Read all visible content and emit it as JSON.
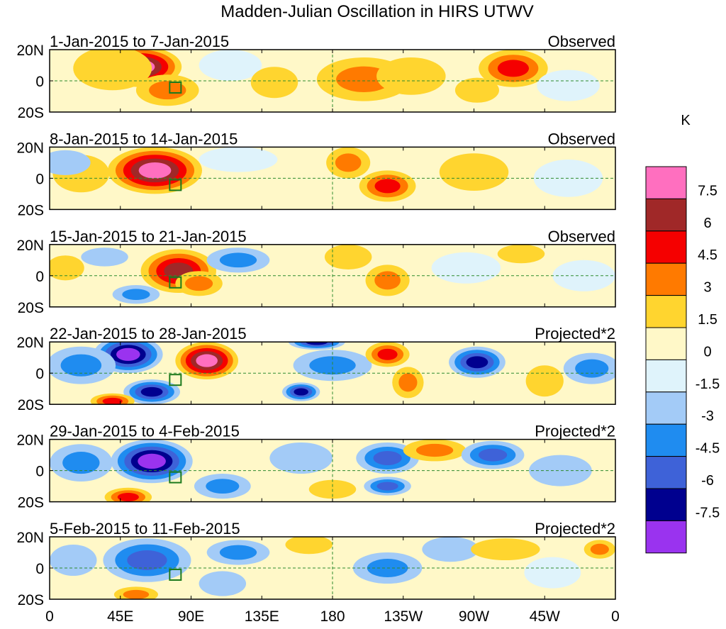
{
  "chart_data": {
    "type": "heatmap",
    "title": "Madden-Julian Oscillation in HIRS UTWV",
    "units": "K",
    "x_ticks": [
      "0",
      "45E",
      "90E",
      "135E",
      "180",
      "135W",
      "90W",
      "45W",
      "0"
    ],
    "y_ticks": [
      "20N",
      "0",
      "20S"
    ],
    "lat_range": [
      -20,
      20
    ],
    "lon_range": [
      0,
      360
    ],
    "colorbar": {
      "levels": [
        -7.5,
        -6,
        -4.5,
        -3,
        -1.5,
        0,
        1.5,
        3,
        4.5,
        6,
        7.5
      ],
      "labels": [
        "7.5",
        "6",
        "4.5",
        "3",
        "1.5",
        "0",
        "-1.5",
        "-3",
        "-4.5",
        "-6",
        "-7.5"
      ],
      "colors": [
        "#9a33ef",
        "#00008f",
        "#3e62d8",
        "#1f8cf0",
        "#a3cbf7",
        "#dff3fb",
        "#fff8c8",
        "#ffd52f",
        "#ff7a00",
        "#f50000",
        "#a02828",
        "#ff6fbf"
      ]
    },
    "panels": [
      {
        "period": "1-Jan-2015 to 7-Jan-2015",
        "kind": "Observed",
        "anomalies": [
          {
            "lon": 58,
            "lat": 9,
            "value": 7.5,
            "rx": 26,
            "ry": 13
          },
          {
            "lon": 75,
            "lat": -6,
            "value": 3.5,
            "rx": 20,
            "ry": 10
          },
          {
            "lon": 40,
            "lat": 8,
            "value": 2,
            "rx": 25,
            "ry": 14
          },
          {
            "lon": 115,
            "lat": 10,
            "value": -1,
            "rx": 20,
            "ry": 10
          },
          {
            "lon": 143,
            "lat": -1,
            "value": 1.5,
            "rx": 15,
            "ry": 10
          },
          {
            "lon": 200,
            "lat": 1,
            "value": 4,
            "rx": 30,
            "ry": 14
          },
          {
            "lon": 230,
            "lat": 3,
            "value": 2.5,
            "rx": 22,
            "ry": 12
          },
          {
            "lon": 295,
            "lat": 8,
            "value": 5,
            "rx": 22,
            "ry": 12
          },
          {
            "lon": 272,
            "lat": -6,
            "value": 2,
            "rx": 14,
            "ry": 8
          },
          {
            "lon": 330,
            "lat": -3,
            "value": -1,
            "rx": 20,
            "ry": 10
          }
        ]
      },
      {
        "period": "8-Jan-2015 to 14-Jan-2015",
        "kind": "Observed",
        "anomalies": [
          {
            "lon": 67,
            "lat": 5,
            "value": 8,
            "rx": 30,
            "ry": 15
          },
          {
            "lon": 20,
            "lat": 3,
            "value": 2,
            "rx": 18,
            "ry": 12
          },
          {
            "lon": 10,
            "lat": 10,
            "value": -2.5,
            "rx": 16,
            "ry": 8
          },
          {
            "lon": 120,
            "lat": 12,
            "value": -1.2,
            "rx": 25,
            "ry": 8
          },
          {
            "lon": 190,
            "lat": 10,
            "value": 3.5,
            "rx": 14,
            "ry": 10
          },
          {
            "lon": 215,
            "lat": -5,
            "value": 5,
            "rx": 18,
            "ry": 10
          },
          {
            "lon": 270,
            "lat": 4,
            "value": 2,
            "rx": 22,
            "ry": 12
          },
          {
            "lon": 330,
            "lat": 0,
            "value": -1,
            "rx": 22,
            "ry": 12
          }
        ]
      },
      {
        "period": "15-Jan-2015 to 21-Jan-2015",
        "kind": "Observed",
        "anomalies": [
          {
            "lon": 82,
            "lat": 3,
            "value": 6.5,
            "rx": 24,
            "ry": 14
          },
          {
            "lon": 95,
            "lat": -5,
            "value": 3.5,
            "rx": 15,
            "ry": 8
          },
          {
            "lon": 10,
            "lat": 5,
            "value": 2,
            "rx": 12,
            "ry": 8
          },
          {
            "lon": 55,
            "lat": -12,
            "value": -4,
            "rx": 15,
            "ry": 6
          },
          {
            "lon": 120,
            "lat": 10,
            "value": -3.5,
            "rx": 20,
            "ry": 8
          },
          {
            "lon": 35,
            "lat": 12,
            "value": -2,
            "rx": 15,
            "ry": 6
          },
          {
            "lon": 190,
            "lat": 12,
            "value": 2,
            "rx": 15,
            "ry": 8
          },
          {
            "lon": 215,
            "lat": -3,
            "value": 4,
            "rx": 14,
            "ry": 10
          },
          {
            "lon": 300,
            "lat": 14,
            "value": 2.5,
            "rx": 15,
            "ry": 6
          },
          {
            "lon": 265,
            "lat": 5,
            "value": -1.2,
            "rx": 22,
            "ry": 10
          },
          {
            "lon": 340,
            "lat": 0,
            "value": -1,
            "rx": 20,
            "ry": 10
          }
        ]
      },
      {
        "period": "22-Jan-2015 to 28-Jan-2015",
        "kind": "Projected*2",
        "anomalies": [
          {
            "lon": 50,
            "lat": 12,
            "value": -9,
            "rx": 22,
            "ry": 12
          },
          {
            "lon": 20,
            "lat": 5,
            "value": -4,
            "rx": 22,
            "ry": 12
          },
          {
            "lon": 100,
            "lat": 8,
            "value": 7.5,
            "rx": 20,
            "ry": 12
          },
          {
            "lon": 65,
            "lat": -12,
            "value": -6,
            "rx": 18,
            "ry": 8
          },
          {
            "lon": 40,
            "lat": -18,
            "value": 4.5,
            "rx": 14,
            "ry": 5
          },
          {
            "lon": 170,
            "lat": 20,
            "value": -7,
            "rx": 18,
            "ry": 5
          },
          {
            "lon": 180,
            "lat": 5,
            "value": -3.5,
            "rx": 25,
            "ry": 10
          },
          {
            "lon": 160,
            "lat": -12,
            "value": -6,
            "rx": 12,
            "ry": 6
          },
          {
            "lon": 215,
            "lat": 12,
            "value": 5,
            "rx": 14,
            "ry": 8
          },
          {
            "lon": 228,
            "lat": -6,
            "value": 4,
            "rx": 10,
            "ry": 10
          },
          {
            "lon": 272,
            "lat": 7,
            "value": -7,
            "rx": 18,
            "ry": 10
          },
          {
            "lon": 345,
            "lat": 3,
            "value": -4,
            "rx": 18,
            "ry": 10
          },
          {
            "lon": 315,
            "lat": -5,
            "value": 2,
            "rx": 12,
            "ry": 10
          }
        ]
      },
      {
        "period": "29-Jan-2015 to 4-Feb-2015",
        "kind": "Projected*2",
        "anomalies": [
          {
            "lon": 65,
            "lat": 6,
            "value": -9,
            "rx": 26,
            "ry": 14
          },
          {
            "lon": 20,
            "lat": 5,
            "value": -4,
            "rx": 20,
            "ry": 12
          },
          {
            "lon": 50,
            "lat": -17,
            "value": 5,
            "rx": 15,
            "ry": 6
          },
          {
            "lon": 110,
            "lat": -10,
            "value": -4,
            "rx": 18,
            "ry": 8
          },
          {
            "lon": 160,
            "lat": 8,
            "value": -2.5,
            "rx": 20,
            "ry": 10
          },
          {
            "lon": 180,
            "lat": -12,
            "value": 2,
            "rx": 15,
            "ry": 6
          },
          {
            "lon": 215,
            "lat": 8,
            "value": -4.5,
            "rx": 20,
            "ry": 10
          },
          {
            "lon": 215,
            "lat": -10,
            "value": -5,
            "rx": 15,
            "ry": 6
          },
          {
            "lon": 245,
            "lat": 13,
            "value": 3,
            "rx": 20,
            "ry": 7
          },
          {
            "lon": 282,
            "lat": 10,
            "value": -4.5,
            "rx": 20,
            "ry": 9
          },
          {
            "lon": 325,
            "lat": 0,
            "value": -2,
            "rx": 20,
            "ry": 10
          }
        ]
      },
      {
        "period": "5-Feb-2015 to 11-Feb-2015",
        "kind": "Projected*2",
        "anomalies": [
          {
            "lon": 62,
            "lat": 5,
            "value": -4.5,
            "rx": 28,
            "ry": 14
          },
          {
            "lon": 55,
            "lat": -17,
            "value": 4,
            "rx": 14,
            "ry": 5
          },
          {
            "lon": 15,
            "lat": 5,
            "value": -1.5,
            "rx": 15,
            "ry": 10
          },
          {
            "lon": 120,
            "lat": 10,
            "value": -3,
            "rx": 20,
            "ry": 8
          },
          {
            "lon": 110,
            "lat": -10,
            "value": -2.5,
            "rx": 15,
            "ry": 8
          },
          {
            "lon": 165,
            "lat": 15,
            "value": 2,
            "rx": 15,
            "ry": 6
          },
          {
            "lon": 215,
            "lat": 0,
            "value": -3.5,
            "rx": 22,
            "ry": 10
          },
          {
            "lon": 255,
            "lat": 12,
            "value": -1.5,
            "rx": 18,
            "ry": 8
          },
          {
            "lon": 290,
            "lat": 12,
            "value": 2.5,
            "rx": 22,
            "ry": 7
          },
          {
            "lon": 350,
            "lat": 12,
            "value": 3,
            "rx": 10,
            "ry": 6
          },
          {
            "lon": 320,
            "lat": -3,
            "value": -1.2,
            "rx": 18,
            "ry": 10
          }
        ]
      }
    ]
  }
}
